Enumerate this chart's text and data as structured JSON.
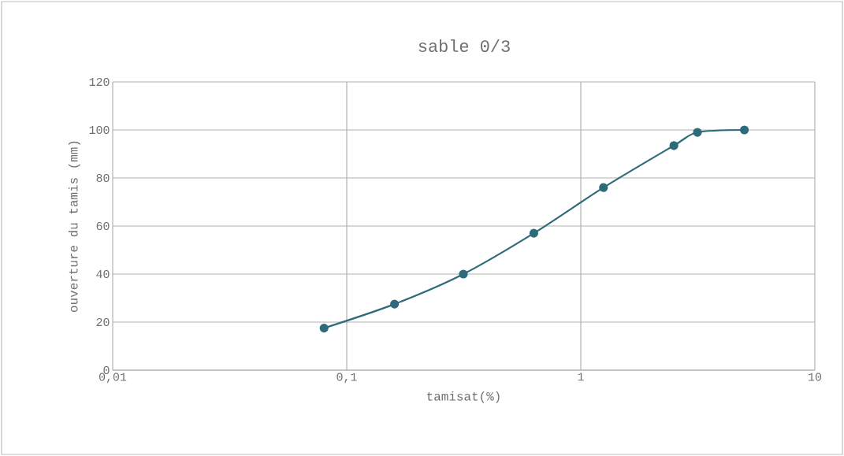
{
  "chart_data": {
    "type": "line",
    "title": "sable 0/3",
    "xlabel": "tamisat(%)",
    "ylabel": "ouverture du tamis (mm)",
    "x": [
      0.08,
      0.16,
      0.315,
      0.63,
      1.25,
      2.5,
      3.15,
      5
    ],
    "series": [
      {
        "color": "#2e6b7a",
        "values": [
          17.5,
          27.5,
          40,
          57,
          76,
          93.5,
          99,
          100
        ]
      }
    ],
    "log": "x",
    "xlim": [
      0.01,
      10
    ],
    "xticks": [
      {
        "value": 0.01,
        "label": "0,01"
      },
      {
        "value": 0.1,
        "label": "0,1"
      },
      1,
      10
    ],
    "ylim": [
      0,
      120
    ],
    "yticks": [
      0,
      20,
      40,
      60,
      80,
      100,
      120
    ],
    "grid": true,
    "marker": "circle",
    "line_style": "solid"
  }
}
